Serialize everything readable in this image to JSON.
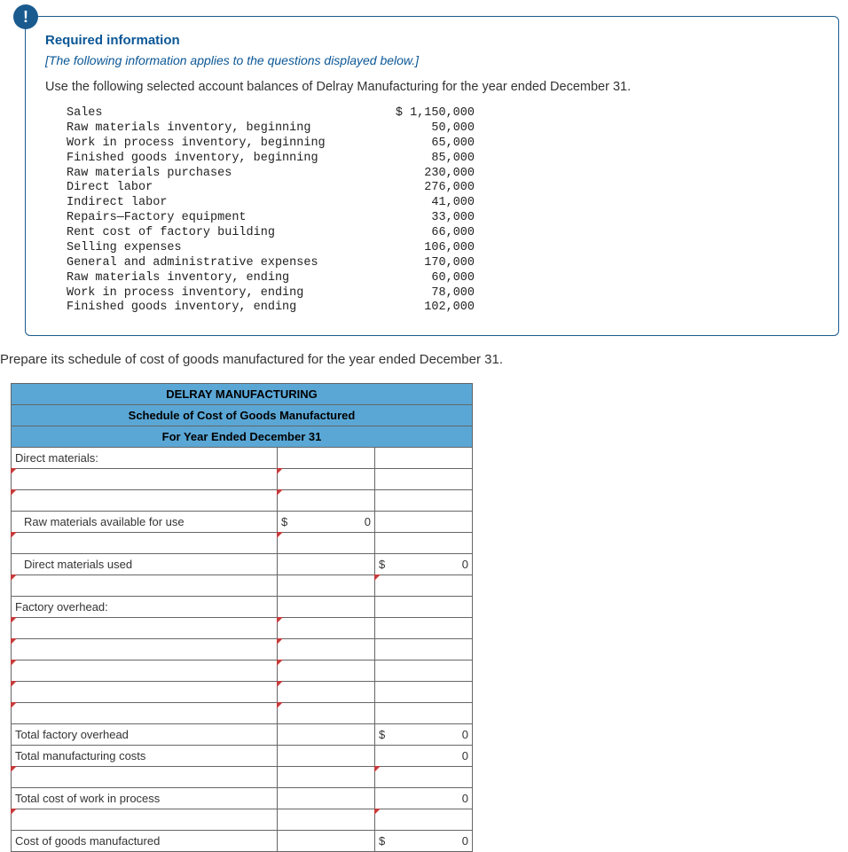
{
  "info": {
    "badge": "!",
    "title": "Required information",
    "subtitle": "[The following information applies to the questions displayed below.]",
    "lead": "Use the following selected account balances of Delray Manufacturing for the year ended December 31."
  },
  "balances": [
    {
      "label": "Sales",
      "value": "$ 1,150,000"
    },
    {
      "label": "Raw materials inventory, beginning",
      "value": "50,000"
    },
    {
      "label": "Work in process inventory, beginning",
      "value": "65,000"
    },
    {
      "label": "Finished goods inventory, beginning",
      "value": "85,000"
    },
    {
      "label": "Raw materials purchases",
      "value": "230,000"
    },
    {
      "label": "Direct labor",
      "value": "276,000"
    },
    {
      "label": "Indirect labor",
      "value": "41,000"
    },
    {
      "label": "Repairs—Factory equipment",
      "value": "33,000"
    },
    {
      "label": "Rent cost of factory building",
      "value": "66,000"
    },
    {
      "label": "Selling expenses",
      "value": "106,000"
    },
    {
      "label": "General and administrative expenses",
      "value": "170,000"
    },
    {
      "label": "Raw materials inventory, ending",
      "value": "60,000"
    },
    {
      "label": "Work in process inventory, ending",
      "value": "78,000"
    },
    {
      "label": "Finished goods inventory, ending",
      "value": "102,000"
    }
  ],
  "instruction": "Prepare its schedule of cost of goods manufactured for the year ended December 31.",
  "schedule": {
    "header1": "DELRAY MANUFACTURING",
    "header2": "Schedule of Cost of Goods Manufactured",
    "header3": "For Year Ended December 31",
    "rows": {
      "direct_materials": "Direct materials:",
      "raw_avail": "Raw materials available for use",
      "raw_avail_amt_d": "$",
      "raw_avail_amt_v": "0",
      "dm_used": "Direct materials used",
      "dm_used_amt_d": "$",
      "dm_used_amt_v": "0",
      "factory_oh": "Factory overhead:",
      "total_foh": "Total factory overhead",
      "total_foh_amt_d": "$",
      "total_foh_amt_v": "0",
      "total_mfg": "Total manufacturing costs",
      "total_mfg_amt_v": "0",
      "total_cwip": "Total cost of work in process",
      "total_cwip_amt_v": "0",
      "cogm": "Cost of goods manufactured",
      "cogm_amt_d": "$",
      "cogm_amt_v": "0"
    }
  },
  "style": {
    "header_bg": "#5aa7d6",
    "border_color": "#666666",
    "marker_color": "#c63c3c",
    "brand_color": "#0b5796"
  }
}
